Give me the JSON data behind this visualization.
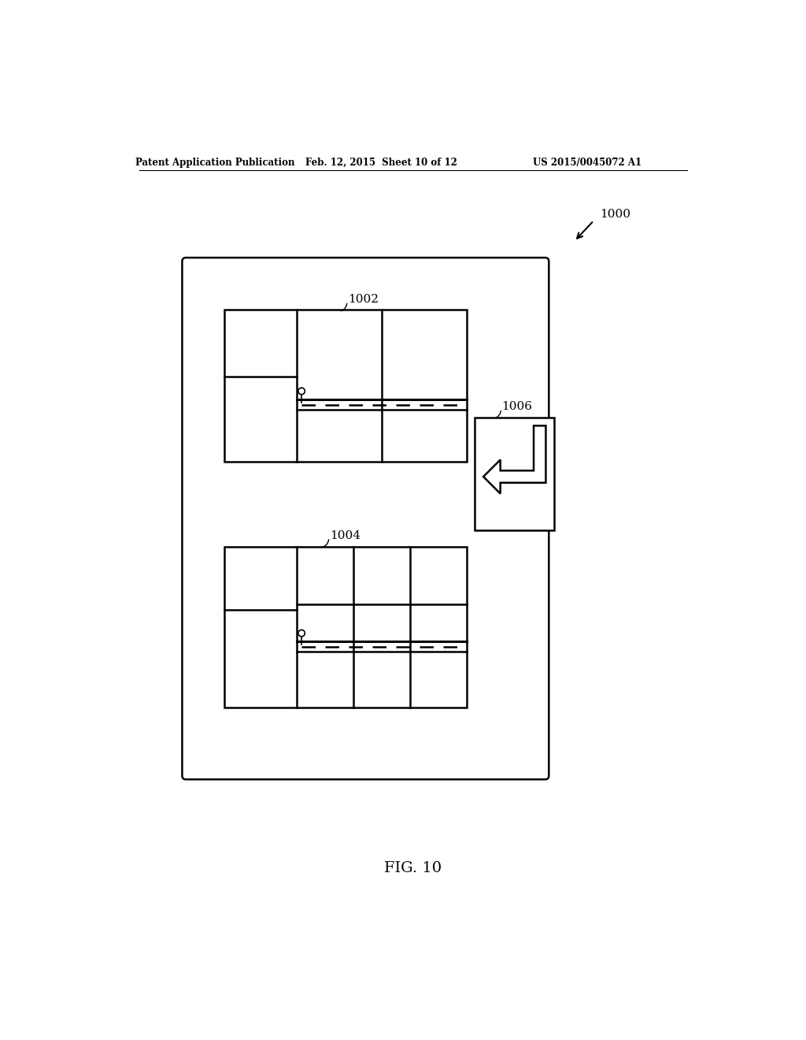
{
  "header_left": "Patent Application Publication",
  "header_mid": "Feb. 12, 2015  Sheet 10 of 12",
  "header_right": "US 2015/0045072 A1",
  "fig_label": "FIG. 10",
  "label_1000": "1000",
  "label_1002": "1002",
  "label_1004": "1004",
  "label_1006": "1006",
  "bg_color": "#ffffff",
  "line_color": "#000000"
}
